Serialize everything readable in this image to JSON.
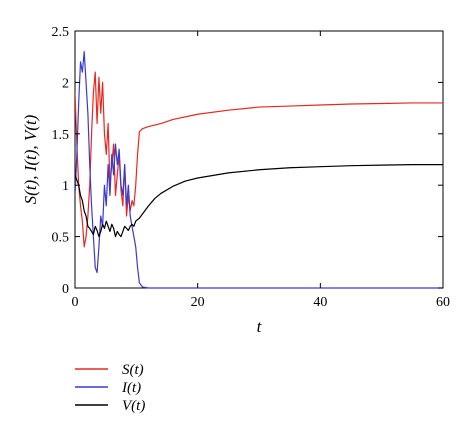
{
  "chart_data": {
    "type": "line",
    "xlabel": "t",
    "ylabel": "S(t), I(t), V(t)",
    "xlim": [
      0,
      60
    ],
    "ylim": [
      0,
      2.5
    ],
    "xticks": [
      0,
      20,
      40,
      60
    ],
    "yticks": [
      0,
      0.5,
      1,
      1.5,
      2,
      2.5
    ],
    "grid": false,
    "legend_position": "bottom-left, below plot",
    "series": [
      {
        "name": "S(t)",
        "color": "#e8281e",
        "x": [
          0,
          0.3,
          0.6,
          0.9,
          1.2,
          1.5,
          1.8,
          2.1,
          2.4,
          2.7,
          3.0,
          3.3,
          3.6,
          3.9,
          4.2,
          4.5,
          4.8,
          5.1,
          5.4,
          5.7,
          6.0,
          6.3,
          6.6,
          6.9,
          7.2,
          7.5,
          7.8,
          8.1,
          8.4,
          8.7,
          9.0,
          9.3,
          9.6,
          9.9,
          10.2,
          10.5,
          11,
          12,
          14,
          16,
          20,
          25,
          30,
          35,
          40,
          45,
          50,
          55,
          60
        ],
        "y": [
          1.9,
          1.4,
          1.0,
          0.8,
          0.65,
          0.4,
          0.5,
          0.7,
          1.0,
          1.5,
          1.9,
          2.1,
          1.6,
          2.05,
          1.7,
          2.0,
          1.5,
          1.3,
          1.6,
          1.0,
          1.2,
          1.4,
          0.9,
          1.1,
          1.3,
          0.95,
          0.8,
          1.2,
          0.7,
          0.9,
          0.75,
          0.85,
          0.8,
          1.0,
          1.3,
          1.52,
          1.55,
          1.57,
          1.6,
          1.64,
          1.69,
          1.73,
          1.76,
          1.77,
          1.78,
          1.79,
          1.795,
          1.8,
          1.8
        ]
      },
      {
        "name": "I(t)",
        "color": "#3a3acf",
        "x": [
          0,
          0.3,
          0.6,
          0.9,
          1.2,
          1.5,
          1.8,
          2.1,
          2.4,
          2.7,
          3.0,
          3.3,
          3.6,
          3.9,
          4.2,
          4.5,
          4.8,
          5.1,
          5.4,
          5.7,
          6.0,
          6.3,
          6.6,
          6.9,
          7.2,
          7.5,
          7.8,
          8.1,
          8.4,
          8.7,
          9.0,
          9.3,
          9.6,
          9.9,
          10.2,
          10.5,
          11,
          12,
          14,
          20,
          30,
          40,
          50,
          60
        ],
        "y": [
          0.9,
          1.3,
          1.8,
          2.2,
          2.1,
          2.3,
          2.0,
          1.7,
          1.2,
          0.8,
          0.5,
          0.2,
          0.15,
          0.4,
          0.7,
          0.6,
          1.0,
          0.8,
          1.2,
          0.9,
          1.3,
          1.1,
          1.4,
          1.2,
          1.35,
          1.0,
          0.9,
          1.2,
          0.8,
          1.0,
          0.7,
          0.6,
          0.5,
          0.4,
          0.2,
          0.05,
          0.01,
          0.0,
          0.0,
          0.0,
          0.0,
          0.0,
          0.0,
          0.0
        ]
      },
      {
        "name": "V(t)",
        "color": "#000000",
        "x": [
          0,
          0.3,
          0.6,
          0.9,
          1.2,
          1.5,
          1.8,
          2.1,
          2.4,
          2.7,
          3.0,
          3.3,
          3.6,
          3.9,
          4.2,
          4.5,
          4.8,
          5.1,
          5.4,
          5.7,
          6.0,
          6.3,
          6.6,
          6.9,
          7.2,
          7.5,
          7.8,
          8.1,
          8.4,
          8.7,
          9.0,
          9.3,
          9.6,
          9.9,
          10.5,
          11,
          12,
          13,
          14,
          16,
          18,
          20,
          25,
          30,
          35,
          40,
          45,
          50,
          55,
          60
        ],
        "y": [
          1.1,
          1.05,
          1.0,
          0.9,
          0.85,
          0.75,
          0.7,
          0.6,
          0.58,
          0.55,
          0.52,
          0.6,
          0.56,
          0.5,
          0.55,
          0.62,
          0.58,
          0.65,
          0.6,
          0.55,
          0.62,
          0.58,
          0.5,
          0.55,
          0.52,
          0.5,
          0.55,
          0.6,
          0.58,
          0.56,
          0.6,
          0.62,
          0.6,
          0.65,
          0.68,
          0.72,
          0.8,
          0.87,
          0.92,
          0.99,
          1.04,
          1.07,
          1.12,
          1.15,
          1.17,
          1.18,
          1.19,
          1.195,
          1.2,
          1.2
        ]
      }
    ]
  }
}
